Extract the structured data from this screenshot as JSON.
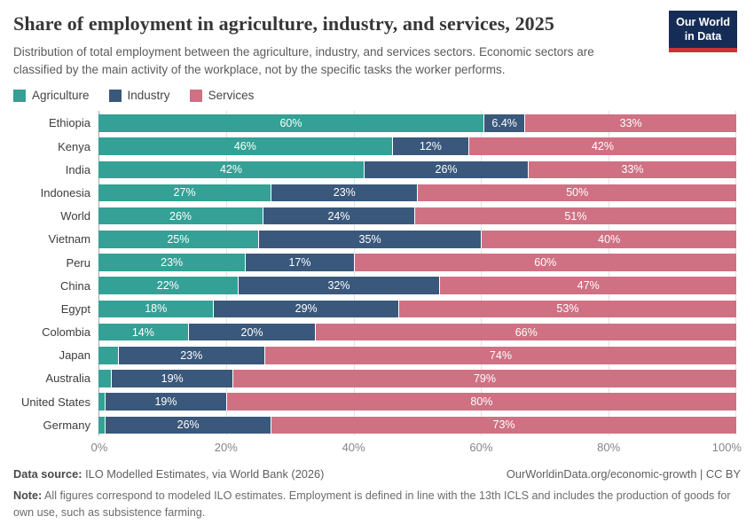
{
  "header": {
    "title": "Share of employment in agriculture, industry, and services, 2025",
    "subtitle": "Distribution of total employment between the agriculture, industry, and services sectors. Economic sectors are classified by the main activity of the workplace, not by the specific tasks the worker performs.",
    "logo": {
      "line1": "Our World",
      "line2": "in Data",
      "bg_color": "#152d56",
      "accent_color": "#ca3335"
    }
  },
  "legend": [
    {
      "label": "Agriculture",
      "color": "#35a095"
    },
    {
      "label": "Industry",
      "color": "#3a587b"
    },
    {
      "label": "Services",
      "color": "#cf7183"
    }
  ],
  "chart_data": {
    "type": "bar",
    "orientation": "horizontal",
    "stacked": true,
    "normalized_to_100": true,
    "grid": true,
    "legend_position": "top",
    "title": "Share of employment in agriculture, industry, and services, 2025",
    "xlabel": "",
    "ylabel": "",
    "xlim": [
      0,
      100
    ],
    "x_ticks": [
      0,
      20,
      40,
      60,
      80,
      100
    ],
    "x_tick_labels": [
      "0%",
      "20%",
      "40%",
      "60%",
      "80%",
      "100%"
    ],
    "categories": [
      "Ethiopia",
      "Kenya",
      "India",
      "Indonesia",
      "World",
      "Vietnam",
      "Peru",
      "China",
      "Egypt",
      "Colombia",
      "Japan",
      "Australia",
      "United States",
      "Germany"
    ],
    "series": [
      {
        "name": "Agriculture",
        "color": "#35a095",
        "values": [
          60,
          46,
          42,
          27,
          26,
          25,
          23,
          22,
          18,
          14,
          3,
          2,
          1,
          1
        ],
        "bar_labels": [
          "60%",
          "46%",
          "42%",
          "27%",
          "26%",
          "25%",
          "23%",
          "22%",
          "18%",
          "14%",
          "",
          "",
          "",
          ""
        ]
      },
      {
        "name": "Industry",
        "color": "#3a587b",
        "values": [
          6.4,
          12,
          26,
          23,
          24,
          35,
          17,
          32,
          29,
          20,
          23,
          19,
          19,
          26
        ],
        "bar_labels": [
          "6.4%",
          "12%",
          "26%",
          "23%",
          "24%",
          "35%",
          "17%",
          "32%",
          "29%",
          "20%",
          "23%",
          "19%",
          "19%",
          "26%"
        ]
      },
      {
        "name": "Services",
        "color": "#cf7183",
        "values": [
          33,
          42,
          33,
          50,
          51,
          40,
          60,
          47,
          53,
          66,
          74,
          79,
          80,
          73
        ],
        "bar_labels": [
          "33%",
          "42%",
          "33%",
          "50%",
          "51%",
          "40%",
          "60%",
          "47%",
          "53%",
          "66%",
          "74%",
          "79%",
          "80%",
          "73%"
        ]
      }
    ]
  },
  "footer": {
    "source_label": "Data source:",
    "source_text": "ILO Modelled Estimates, via World Bank (2026)",
    "link": "OurWorldinData.org/economic-growth | CC BY",
    "note_label": "Note:",
    "note_text": "All figures correspond to modeled ILO estimates. Employment is defined in line with the 13th ICLS and includes the production of goods for own use, such as subsistence farming."
  }
}
